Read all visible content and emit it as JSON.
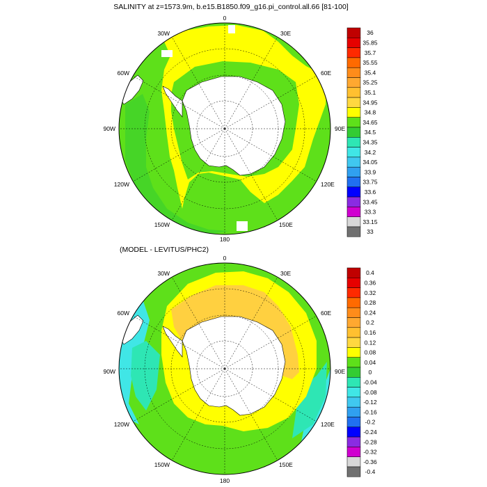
{
  "top_panel": {
    "title": "SALINITY at z=1573.9m, b.e15.B1850.f09_g16.pi_control.all.66 [81-100]",
    "lon_labels": {
      "n": "0",
      "nne": "30E",
      "ene": "60E",
      "e": "90E",
      "ese": "120E",
      "sse": "150E",
      "s": "180",
      "ssw": "150W",
      "wsw": "120W",
      "w": "90W",
      "wnw": "60W",
      "nnw": "30W"
    },
    "colorbar": {
      "labels": [
        "36",
        "35.85",
        "35.7",
        "35.55",
        "35.4",
        "35.25",
        "35.1",
        "34.95",
        "34.8",
        "34.65",
        "34.5",
        "34.35",
        "34.2",
        "34.05",
        "33.9",
        "33.75",
        "33.6",
        "33.45",
        "33.3",
        "33.15",
        "33"
      ],
      "colors": [
        "#c00000",
        "#e60000",
        "#ff2a00",
        "#ff6a00",
        "#ff8c1a",
        "#ffa830",
        "#ffc030",
        "#ffd840",
        "#ffff00",
        "#5ee01a",
        "#33cc33",
        "#2ee6b4",
        "#40e6e6",
        "#40c8f0",
        "#30a0f0",
        "#2070f0",
        "#0000ff",
        "#8a2be2",
        "#d000d0",
        "#d8d8d8",
        "#707070"
      ]
    }
  },
  "bottom_panel": {
    "title": "(MODEL - LEVITUS/PHC2)",
    "lon_labels": {
      "n": "0",
      "nne": "30E",
      "ene": "60E",
      "e": "90E",
      "ese": "120E",
      "sse": "150E",
      "s": "180",
      "ssw": "150W",
      "wsw": "120W",
      "w": "90W",
      "wnw": "60W",
      "nnw": "30W"
    },
    "colorbar": {
      "labels": [
        "0.4",
        "0.36",
        "0.32",
        "0.28",
        "0.24",
        "0.2",
        "0.16",
        "0.12",
        "0.08",
        "0.04",
        "0",
        "-0.04",
        "-0.08",
        "-0.12",
        "-0.16",
        "-0.2",
        "-0.24",
        "-0.28",
        "-0.32",
        "-0.36",
        "-0.4"
      ],
      "colors": [
        "#c00000",
        "#e60000",
        "#ff2a00",
        "#ff6a00",
        "#ff8c1a",
        "#ffa830",
        "#ffc030",
        "#ffd840",
        "#ffff00",
        "#5ee01a",
        "#33cc33",
        "#2ee6b4",
        "#40e6e6",
        "#40c8f0",
        "#30a0f0",
        "#2070f0",
        "#0000ff",
        "#8a2be2",
        "#d000d0",
        "#d8d8d8",
        "#707070"
      ]
    }
  },
  "palette": {
    "land": "#ffffff",
    "yellow": "#ffff00",
    "green": "#5ee01a",
    "orange": "#ffd040",
    "cyan": "#40e6e6",
    "aqua": "#2ee6b4"
  }
}
